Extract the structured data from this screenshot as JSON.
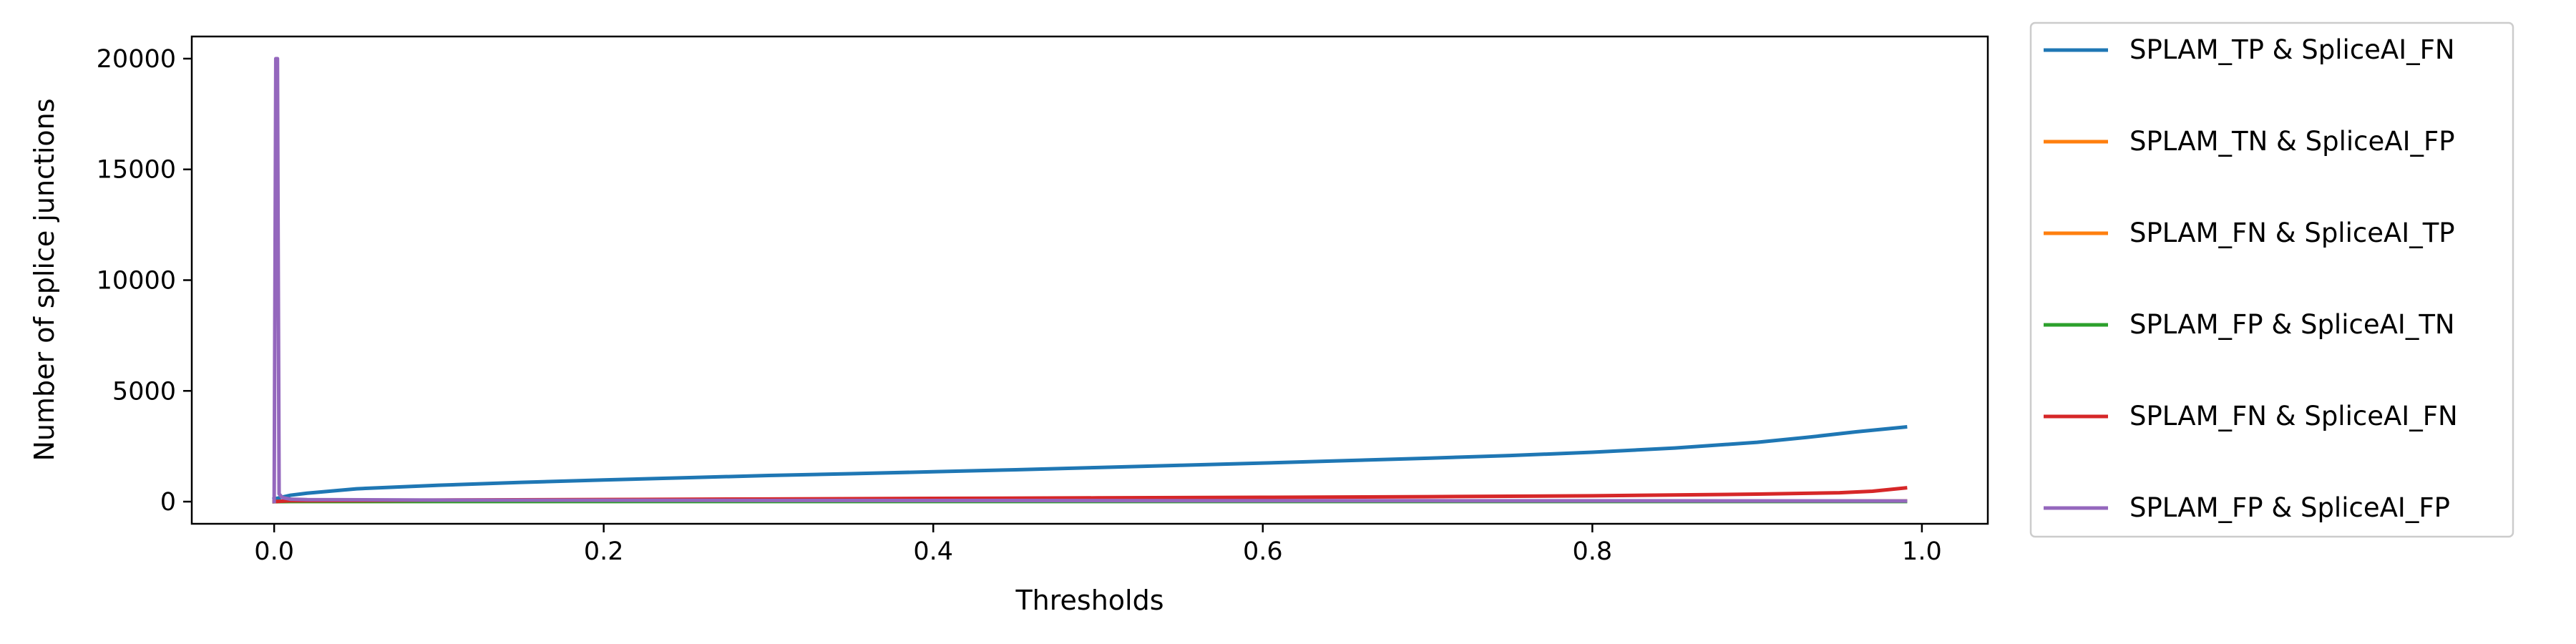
{
  "chart_data": {
    "type": "line",
    "title": "",
    "xlabel": "Thresholds",
    "ylabel": "Number of splice junctions",
    "xlim": [
      -0.05,
      1.04
    ],
    "ylim": [
      -1000,
      21000
    ],
    "grid": false,
    "legend_position": "outside-right",
    "x_ticks": [
      0.0,
      0.2,
      0.4,
      0.6,
      0.8,
      1.0
    ],
    "x_tick_labels": [
      "0.0",
      "0.2",
      "0.4",
      "0.6",
      "0.8",
      "1.0"
    ],
    "y_ticks": [
      0,
      5000,
      10000,
      15000,
      20000
    ],
    "y_tick_labels": [
      "0",
      "5000",
      "10000",
      "15000",
      "20000"
    ],
    "series": [
      {
        "name": "SPLAM_TP & SpliceAI_FN",
        "color": "#1f77b4",
        "x": [
          0.0,
          0.01,
          0.02,
          0.05,
          0.1,
          0.15,
          0.2,
          0.25,
          0.3,
          0.35,
          0.4,
          0.45,
          0.5,
          0.55,
          0.6,
          0.65,
          0.7,
          0.75,
          0.8,
          0.85,
          0.9,
          0.93,
          0.96,
          0.99
        ],
        "y": [
          120,
          290,
          380,
          580,
          740,
          870,
          980,
          1080,
          1180,
          1260,
          1350,
          1440,
          1540,
          1640,
          1740,
          1850,
          1960,
          2080,
          2230,
          2420,
          2680,
          2900,
          3150,
          3370
        ]
      },
      {
        "name": "SPLAM_TN & SpliceAI_FP",
        "color": "#ff7f0e",
        "x": [
          0.0,
          0.01,
          0.1,
          0.2,
          0.3,
          0.4,
          0.5,
          0.6,
          0.7,
          0.8,
          0.9,
          0.99
        ],
        "y": [
          0,
          20,
          25,
          25,
          25,
          25,
          25,
          25,
          25,
          25,
          25,
          25
        ]
      },
      {
        "name": "SPLAM_FN & SpliceAI_TP",
        "color": "#ff7f0e",
        "x": [
          0.0,
          0.01,
          0.1,
          0.2,
          0.3,
          0.4,
          0.5,
          0.6,
          0.7,
          0.8,
          0.9,
          0.99
        ],
        "y": [
          0,
          10,
          12,
          15,
          18,
          20,
          22,
          24,
          26,
          28,
          30,
          32
        ]
      },
      {
        "name": "SPLAM_FP & SpliceAI_TN",
        "color": "#2ca02c",
        "x": [
          0.0,
          0.01,
          0.1,
          0.2,
          0.3,
          0.4,
          0.5,
          0.6,
          0.7,
          0.8,
          0.9,
          0.99
        ],
        "y": [
          0,
          5,
          5,
          5,
          5,
          5,
          5,
          5,
          5,
          5,
          5,
          5
        ]
      },
      {
        "name": "SPLAM_FN & SpliceAI_FN",
        "color": "#d62728",
        "x": [
          0.0,
          0.01,
          0.1,
          0.2,
          0.3,
          0.4,
          0.5,
          0.6,
          0.7,
          0.8,
          0.9,
          0.95,
          0.97,
          0.99
        ],
        "y": [
          0,
          40,
          70,
          95,
          120,
          145,
          170,
          195,
          225,
          265,
          340,
          400,
          470,
          620
        ]
      },
      {
        "name": "SPLAM_FP & SpliceAI_FP",
        "color": "#9467bd",
        "x": [
          0.0,
          0.001,
          0.002,
          0.003,
          0.005,
          0.01,
          0.02,
          0.1,
          0.3,
          0.5,
          0.7,
          0.9,
          0.99
        ],
        "y": [
          0,
          20000,
          20000,
          350,
          180,
          110,
          90,
          70,
          55,
          45,
          40,
          35,
          30
        ]
      }
    ]
  }
}
